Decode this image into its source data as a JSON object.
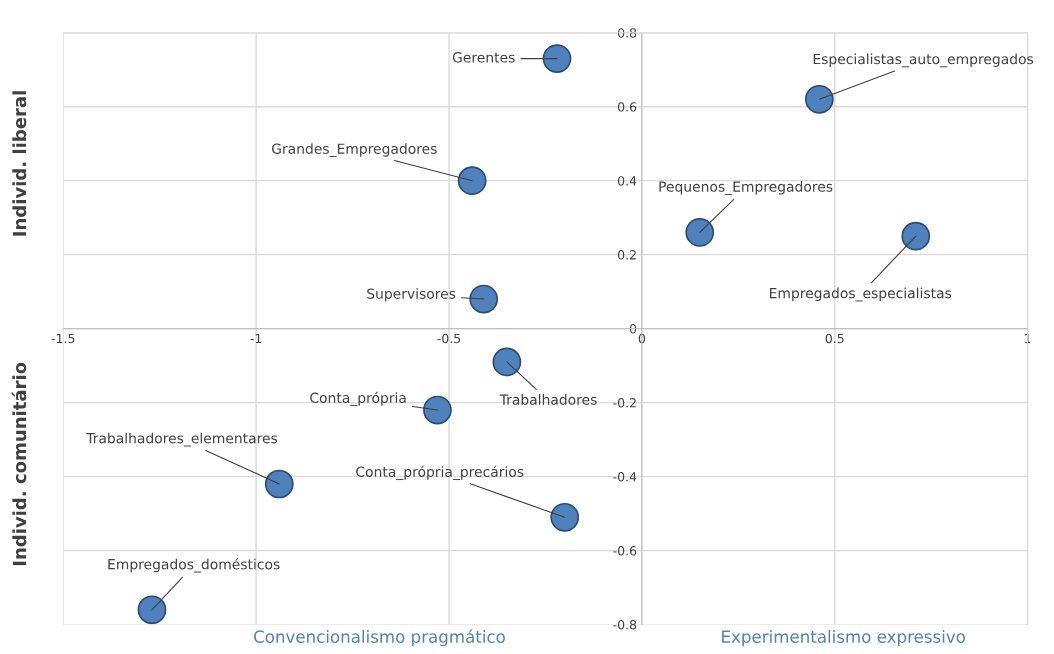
{
  "chart_data": {
    "type": "scatter",
    "x": [
      -0.22,
      0.46,
      -0.44,
      0.15,
      0.71,
      -0.41,
      -0.35,
      -0.53,
      -0.94,
      -0.2,
      -1.27
    ],
    "series": [
      {
        "color": "#4f81bd",
        "values": [
          0.73,
          0.62,
          0.4,
          0.26,
          0.25,
          0.08,
          -0.09,
          -0.22,
          -0.42,
          -0.51,
          -0.76
        ]
      }
    ],
    "marker": "circle",
    "xlim": [
      -1.5,
      1
    ],
    "xticks": [
      -1.5,
      -1,
      -0.5,
      0,
      0.5,
      1
    ],
    "ylim": [
      -0.8,
      0.8
    ],
    "yticks": [
      -0.8,
      -0.6,
      -0.4,
      -0.2,
      0,
      0.2,
      0.4,
      0.6,
      0.8
    ],
    "grid": true,
    "annotations": [
      {
        "text": "Gerentes",
        "x": -0.22,
        "y": 0.73
      },
      {
        "text": "Especialistas_auto_empregados",
        "x": 0.46,
        "y": 0.62
      },
      {
        "text": "Grandes_Empregadores",
        "x": -0.44,
        "y": 0.4
      },
      {
        "text": "Pequenos_Empregadores",
        "x": 0.15,
        "y": 0.26
      },
      {
        "text": "Empregados_especialistas",
        "x": 0.71,
        "y": 0.25
      },
      {
        "text": "Supervisores",
        "x": -0.41,
        "y": 0.08
      },
      {
        "text": "Trabalhadores",
        "x": -0.35,
        "y": -0.09
      },
      {
        "text": "Conta_própria",
        "x": -0.53,
        "y": -0.22
      },
      {
        "text": "Trabalhadores_elementares",
        "x": -0.94,
        "y": -0.42
      },
      {
        "text": "Conta_própria_precários",
        "x": -0.2,
        "y": -0.51
      },
      {
        "text": "Empregados_domésticos",
        "x": -1.27,
        "y": -0.76
      },
      "Convencionalismo pragmático",
      "Experimentalismo expressivo",
      "Individ. liberal",
      "Individ. comunitário"
    ]
  }
}
